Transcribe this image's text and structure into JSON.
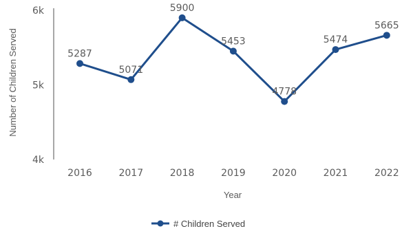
{
  "chart_data": {
    "type": "line",
    "title": "",
    "xlabel": "Year",
    "ylabel": "Number of Children Served",
    "categories": [
      "2016",
      "2017",
      "2018",
      "2019",
      "2020",
      "2021",
      "2022"
    ],
    "series": [
      {
        "name": "# Children Served",
        "values": [
          5287,
          5071,
          5900,
          5453,
          4778,
          5474,
          5665
        ],
        "color": "#1f4e8c"
      }
    ],
    "data_labels": [
      "5287",
      "5071",
      "5900",
      "5453",
      "4778",
      "5474",
      "5665"
    ],
    "y_ticks": [
      {
        "value": 4000,
        "label": "4k"
      },
      {
        "value": 5000,
        "label": "5k"
      },
      {
        "value": 6000,
        "label": "6k"
      }
    ],
    "ylim": [
      4000,
      6000
    ],
    "grid": false,
    "legend_position": "bottom-center"
  }
}
